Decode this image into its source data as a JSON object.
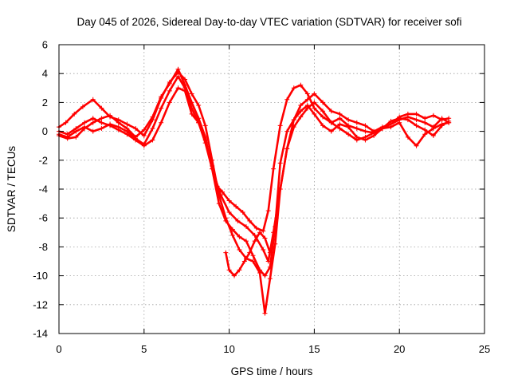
{
  "chart_data": {
    "type": "scatter",
    "title": "Day 045 of 2026, Sidereal Day-to-day VTEC variation (SDTVAR) for receiver sofi",
    "xlabel": "GPS time / hours",
    "ylabel": "SDTVAR / TECUs",
    "xlim": [
      0,
      25
    ],
    "ylim": [
      -14,
      6
    ],
    "xticks": [
      0,
      5,
      10,
      15,
      20,
      25
    ],
    "yticks": [
      -14,
      -12,
      -10,
      -8,
      -6,
      -4,
      -2,
      0,
      2,
      4,
      6
    ],
    "grid": true,
    "marker": "+",
    "color": "#ff0000",
    "series": [
      {
        "name": "track-1",
        "x": [
          0.0,
          0.4,
          0.9,
          1.4,
          2.0,
          2.5,
          3.0,
          3.5,
          4.0,
          4.5,
          5.0,
          5.5,
          6.0,
          6.5,
          7.0,
          7.4,
          7.8,
          8.2,
          8.6,
          9.0,
          9.3,
          9.6,
          10.0,
          10.4,
          10.8,
          11.2,
          11.6,
          12.0,
          12.3,
          12.6,
          13.0,
          13.4,
          13.8,
          14.2,
          14.6,
          15.0,
          15.5,
          16.0,
          16.5,
          17.0,
          17.5,
          18.0,
          18.5,
          19.0,
          19.5,
          20.0,
          20.5,
          21.0,
          21.5,
          22.0,
          22.5,
          22.9
        ],
        "y": [
          0.3,
          0.6,
          1.2,
          1.7,
          2.2,
          1.6,
          1.0,
          0.8,
          0.5,
          0.2,
          -0.3,
          0.8,
          2.3,
          3.4,
          4.1,
          3.6,
          2.6,
          1.8,
          0.4,
          -2.0,
          -3.8,
          -4.2,
          -4.8,
          -5.2,
          -5.6,
          -6.2,
          -6.7,
          -6.9,
          -5.5,
          -2.6,
          0.4,
          2.2,
          3.0,
          3.2,
          2.6,
          1.6,
          1.0,
          0.6,
          0.9,
          0.4,
          0.2,
          0.0,
          -0.1,
          0.2,
          0.5,
          0.8,
          1.0,
          0.8,
          0.6,
          0.3,
          0.9,
          0.6
        ]
      },
      {
        "name": "track-2",
        "x": [
          0.0,
          0.5,
          1.0,
          1.5,
          2.0,
          2.5,
          3.0,
          3.5,
          4.0,
          4.5,
          5.0,
          5.5,
          6.0,
          6.5,
          7.0,
          7.4,
          7.8,
          8.2,
          8.6,
          9.0,
          9.5,
          10.0,
          10.5,
          11.0,
          11.5,
          12.0,
          12.3,
          12.6,
          13.0,
          13.4,
          13.8,
          14.2,
          14.6,
          15.0,
          15.5,
          16.0,
          16.5,
          17.0,
          17.5,
          18.0,
          18.5,
          19.0,
          19.5,
          20.0,
          20.5,
          21.0,
          21.5,
          22.0,
          22.5,
          22.9
        ],
        "y": [
          -0.2,
          -0.4,
          0.0,
          0.3,
          0.0,
          0.2,
          0.5,
          0.3,
          0.0,
          -0.5,
          -0.9,
          0.2,
          1.6,
          2.8,
          3.8,
          3.0,
          1.6,
          0.6,
          -0.8,
          -2.6,
          -4.4,
          -5.6,
          -6.2,
          -6.6,
          -7.2,
          -8.2,
          -9.0,
          -7.0,
          -4.0,
          -1.2,
          0.8,
          1.8,
          2.2,
          2.6,
          2.0,
          1.4,
          1.2,
          0.8,
          0.6,
          0.4,
          0.0,
          0.3,
          0.5,
          1.0,
          1.2,
          1.2,
          0.9,
          1.1,
          0.8,
          0.9
        ]
      },
      {
        "name": "track-3",
        "x": [
          0.0,
          0.5,
          1.0,
          1.5,
          2.0,
          2.5,
          3.0,
          3.5,
          4.0,
          4.5,
          5.0,
          5.5,
          6.0,
          6.5,
          7.0,
          7.4,
          7.8,
          8.2,
          8.6,
          9.0,
          9.4,
          9.8,
          10.2,
          10.6,
          11.0,
          11.4,
          11.8,
          12.1,
          12.4,
          12.7,
          13.0,
          13.4,
          13.8,
          14.2,
          14.6,
          15.0,
          15.5,
          16.0,
          16.5,
          17.0,
          17.5,
          18.0,
          18.5,
          19.0,
          19.5,
          20.0,
          20.5,
          21.0,
          21.5,
          22.0,
          22.5,
          22.9
        ],
        "y": [
          -0.3,
          -0.5,
          -0.4,
          0.2,
          0.6,
          0.9,
          1.1,
          0.6,
          0.2,
          -0.4,
          0.1,
          1.0,
          2.4,
          3.3,
          4.3,
          3.2,
          2.0,
          0.9,
          -0.4,
          -2.6,
          -5.0,
          -6.2,
          -6.8,
          -7.3,
          -7.6,
          -8.6,
          -9.6,
          -10.0,
          -9.4,
          -6.6,
          -2.2,
          0.0,
          0.8,
          1.4,
          1.8,
          1.2,
          0.4,
          0.0,
          0.5,
          0.3,
          -0.4,
          -0.6,
          -0.3,
          0.2,
          0.7,
          0.9,
          0.8,
          0.4,
          0.1,
          -0.3,
          0.4,
          0.7
        ]
      },
      {
        "name": "track-4",
        "x": [
          0.0,
          0.5,
          1.0,
          1.5,
          2.0,
          2.5,
          3.0,
          3.5,
          4.0,
          4.5,
          5.0,
          5.5,
          6.0,
          6.5,
          7.0,
          7.4,
          7.8,
          8.2,
          8.6,
          9.0,
          9.4,
          9.8,
          10.2,
          10.6,
          11.0,
          11.4,
          11.8,
          12.1,
          12.4,
          12.7,
          13.0,
          13.4,
          13.8,
          14.2,
          14.6,
          15.0,
          15.5,
          16.0,
          16.5,
          17.0,
          17.5,
          18.0,
          18.5,
          19.0,
          19.5,
          20.0,
          20.5,
          21.0,
          21.5,
          22.0,
          22.5,
          22.9
        ],
        "y": [
          0.0,
          -0.2,
          0.2,
          0.6,
          0.9,
          0.6,
          0.4,
          0.1,
          -0.2,
          -0.6,
          -1.0,
          -0.6,
          0.6,
          2.0,
          3.0,
          2.8,
          1.2,
          0.6,
          -0.6,
          -2.4,
          -4.4,
          -6.0,
          -7.2,
          -8.2,
          -8.8,
          -9.0,
          -9.8,
          -12.6,
          -10.2,
          -7.8,
          -4.0,
          -1.2,
          0.3,
          1.0,
          1.6,
          2.0,
          1.4,
          0.6,
          0.2,
          -0.2,
          -0.6,
          -0.4,
          -0.1,
          0.2,
          0.3,
          0.6,
          -0.4,
          -1.0,
          -0.2,
          0.2,
          0.5,
          0.6
        ]
      },
      {
        "name": "track-5",
        "x": [
          9.8,
          10.0,
          10.3,
          10.6,
          10.9,
          11.2,
          11.5,
          11.8,
          12.1,
          12.4,
          12.6
        ],
        "y": [
          -8.4,
          -9.6,
          -10.0,
          -9.6,
          -9.0,
          -8.4,
          -7.6,
          -7.0,
          -7.4,
          -8.4,
          -8.0
        ]
      }
    ]
  }
}
